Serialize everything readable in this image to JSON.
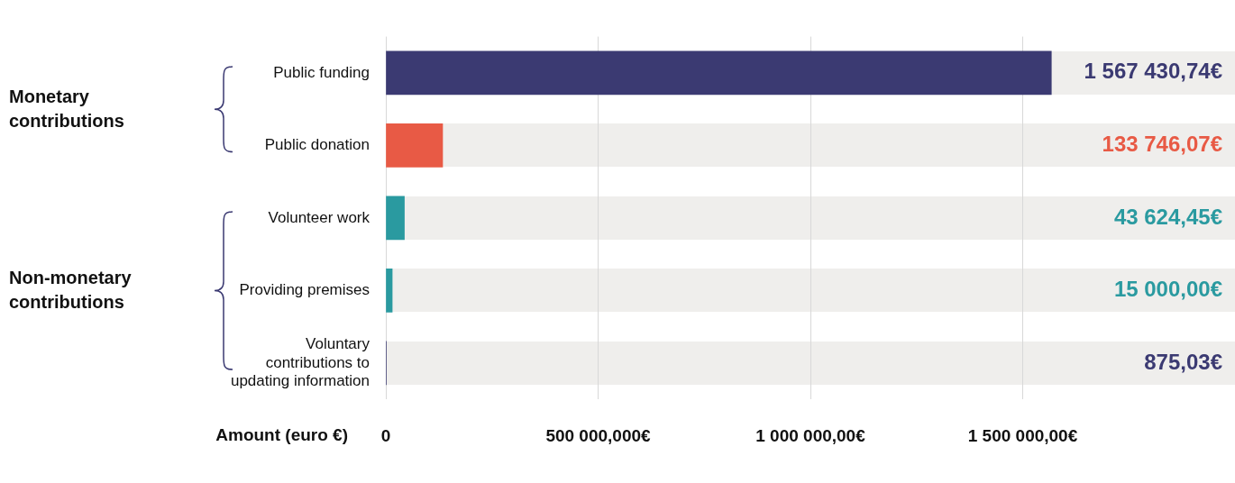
{
  "chart_data": {
    "type": "bar",
    "orientation": "horizontal",
    "xlabel": "Amount (euro €)",
    "categories": [
      "Public funding",
      "Public donation",
      "Volunteer work",
      "Providing premises",
      "Voluntary contributions to updating information"
    ],
    "values": [
      1567430.74,
      133746.07,
      43624.45,
      15000.0,
      875.03
    ],
    "colors": [
      "#3b3a72",
      "#e85a45",
      "#2a9aa0",
      "#2a9aa0",
      "#3b3a72"
    ],
    "value_labels": [
      "1 567 430,74€",
      "133 746,07€",
      "43 624,45€",
      "15 000,00€",
      "875,03€"
    ],
    "xlim": [
      0,
      2000000
    ],
    "xticks": [
      {
        "value": 0,
        "label": "0"
      },
      {
        "value": 500000,
        "label": "500 000,000€"
      },
      {
        "value": 1000000,
        "label": "1 000 000,00€"
      },
      {
        "value": 1500000,
        "label": "1 500 000,00€"
      }
    ],
    "grid": "x",
    "annotations": [
      "Monetary contributions",
      "Non-monetary contributions"
    ]
  }
}
